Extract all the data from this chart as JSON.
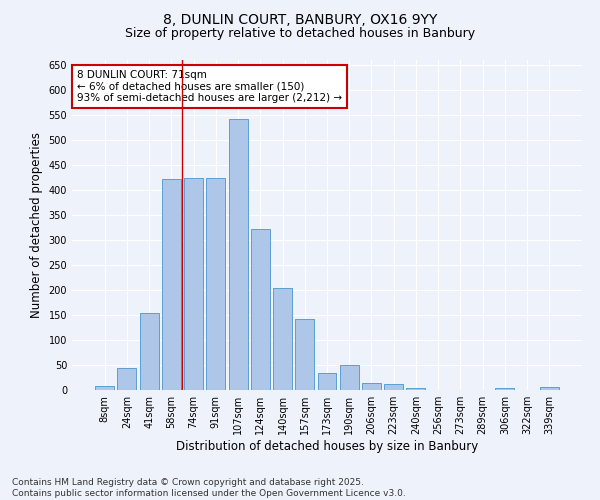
{
  "title": "8, DUNLIN COURT, BANBURY, OX16 9YY",
  "subtitle": "Size of property relative to detached houses in Banbury",
  "xlabel": "Distribution of detached houses by size in Banbury",
  "ylabel": "Number of detached properties",
  "categories": [
    "8sqm",
    "24sqm",
    "41sqm",
    "58sqm",
    "74sqm",
    "91sqm",
    "107sqm",
    "124sqm",
    "140sqm",
    "157sqm",
    "173sqm",
    "190sqm",
    "206sqm",
    "223sqm",
    "240sqm",
    "256sqm",
    "273sqm",
    "289sqm",
    "306sqm",
    "322sqm",
    "339sqm"
  ],
  "values": [
    8,
    45,
    155,
    422,
    424,
    424,
    543,
    323,
    205,
    143,
    35,
    50,
    15,
    13,
    5,
    1,
    0,
    0,
    5,
    0,
    6
  ],
  "bar_color": "#aec6e8",
  "bar_edge_color": "#5a9fd4",
  "vline_color": "#cc0000",
  "vline_x": 3.5,
  "annotation_text": "8 DUNLIN COURT: 71sqm\n← 6% of detached houses are smaller (150)\n93% of semi-detached houses are larger (2,212) →",
  "annotation_box_facecolor": "#ffffff",
  "annotation_box_edgecolor": "#cc0000",
  "footer_text": "Contains HM Land Registry data © Crown copyright and database right 2025.\nContains public sector information licensed under the Open Government Licence v3.0.",
  "ylim": [
    0,
    660
  ],
  "yticks": [
    0,
    50,
    100,
    150,
    200,
    250,
    300,
    350,
    400,
    450,
    500,
    550,
    600,
    650
  ],
  "background_color": "#eef2fb",
  "grid_color": "#ffffff",
  "title_fontsize": 10,
  "subtitle_fontsize": 9,
  "axis_label_fontsize": 8.5,
  "tick_fontsize": 7,
  "annotation_fontsize": 7.5,
  "footer_fontsize": 6.5
}
